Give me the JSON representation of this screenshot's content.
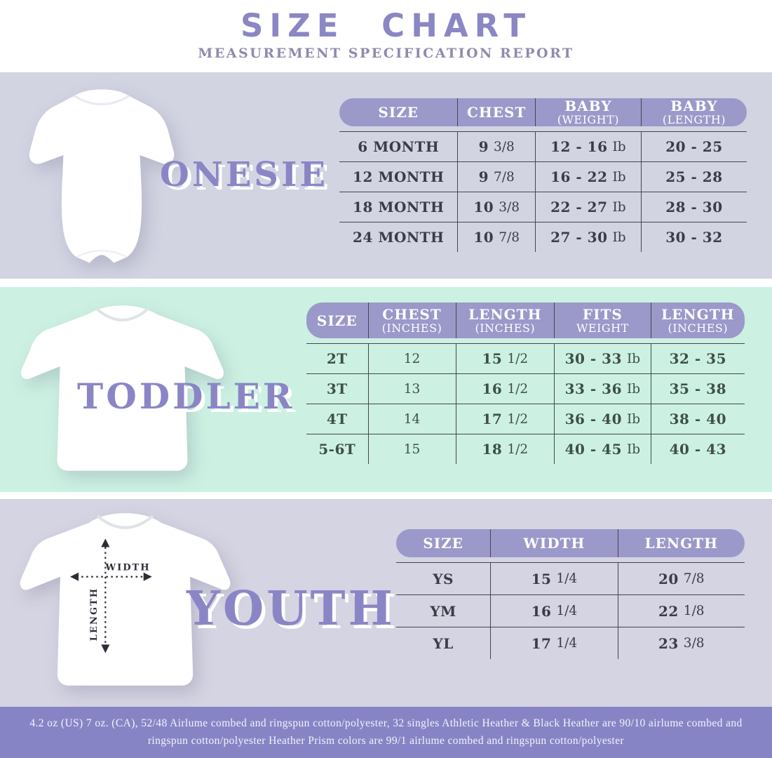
{
  "title": "SIZE CHART",
  "subtitle": "MEASUREMENT SPECIFICATION REPORT",
  "colors": {
    "accent_title": "#8a87c4",
    "subtitle": "#8e8bad",
    "accent_label": "#8a86c6",
    "pill": "#9b98ca",
    "section_lavender": "#d2d4e2",
    "section_lavender2": "#d4d4e2",
    "section_mint": "#ccf1e2",
    "footer_bg": "#8784c6",
    "line": "#45454f",
    "text_dark": "#3c3c46",
    "text_mint": "#3e4f49"
  },
  "onesie": {
    "label": "ONESIE",
    "image": "white-baby-onesie-photo",
    "table": {
      "headers": [
        [
          "SIZE"
        ],
        [
          "CHEST"
        ],
        [
          "BABY",
          "(WEIGHT)"
        ],
        [
          "BABY",
          "(LENGTH)"
        ]
      ],
      "rows": [
        [
          {
            "b": "6 MONTH"
          },
          {
            "b": "9",
            "r": "3/8"
          },
          {
            "b": "12 - 16",
            "r": "Ib"
          },
          {
            "b": "20 - 25"
          }
        ],
        [
          {
            "b": "12 MONTH"
          },
          {
            "b": "9",
            "r": "7/8"
          },
          {
            "b": "16 - 22",
            "r": "Ib"
          },
          {
            "b": "25 - 28"
          }
        ],
        [
          {
            "b": "18 MONTH"
          },
          {
            "b": "10",
            "r": "3/8"
          },
          {
            "b": "22 - 27",
            "r": "Ib"
          },
          {
            "b": "28 - 30"
          }
        ],
        [
          {
            "b": "24 MONTH"
          },
          {
            "b": "10",
            "r": "7/8"
          },
          {
            "b": "27 - 30",
            "r": "Ib"
          },
          {
            "b": "30 - 32"
          }
        ]
      ]
    }
  },
  "toddler": {
    "label": "TODDLER",
    "image": "white-toddler-tshirt-photo",
    "table": {
      "headers": [
        [
          "SIZE"
        ],
        [
          "CHEST",
          "(INCHES)"
        ],
        [
          "LENGTH",
          "(INCHES)"
        ],
        [
          "FITS",
          "WEIGHT"
        ],
        [
          "LENGTH",
          "(INCHES)"
        ]
      ],
      "rows": [
        [
          {
            "b": "2T"
          },
          {
            "r": "12"
          },
          {
            "b": "15",
            "r": "1/2"
          },
          {
            "b": "30 - 33",
            "r": "Ib"
          },
          {
            "b": "32 - 35"
          }
        ],
        [
          {
            "b": "3T"
          },
          {
            "r": "13"
          },
          {
            "b": "16",
            "r": "1/2"
          },
          {
            "b": "33 - 36",
            "r": "Ib"
          },
          {
            "b": "35 - 38"
          }
        ],
        [
          {
            "b": "4T"
          },
          {
            "r": "14"
          },
          {
            "b": "17",
            "r": "1/2"
          },
          {
            "b": "36 - 40",
            "r": "Ib"
          },
          {
            "b": "38 - 40"
          }
        ],
        [
          {
            "b": "5-6T"
          },
          {
            "r": "15"
          },
          {
            "b": "18",
            "r": "1/2"
          },
          {
            "b": "40 - 45",
            "r": "Ib"
          },
          {
            "b": "40 - 43"
          }
        ]
      ]
    }
  },
  "youth": {
    "label": "YOUTH",
    "image": "white-youth-tshirt-photo",
    "measure": {
      "width": "WIDTH",
      "length": "LENGTH"
    },
    "table": {
      "headers": [
        [
          "SIZE"
        ],
        [
          "WIDTH"
        ],
        [
          "LENGTH"
        ]
      ],
      "rows": [
        [
          {
            "b": "YS"
          },
          {
            "b": "15",
            "r": "1/4"
          },
          {
            "b": "20",
            "r": "7/8"
          }
        ],
        [
          {
            "b": "YM"
          },
          {
            "b": "16",
            "r": "1/4"
          },
          {
            "b": "22",
            "r": "1/8"
          }
        ],
        [
          {
            "b": "YL"
          },
          {
            "b": "17",
            "r": "1/4"
          },
          {
            "b": "23",
            "r": "3/8"
          }
        ]
      ]
    }
  },
  "footer": {
    "line1": "4.2 oz (US) 7 oz. (CA), 52/48 Airlume combed and ringspun cotton/polyester, 32 singles Athletic Heather & Black Heather are 90/10 airlume combed and",
    "line2": "ringspun cotton/polyester Heather Prism colors are 99/1 airlume combed and ringspun cotton/polyester"
  }
}
